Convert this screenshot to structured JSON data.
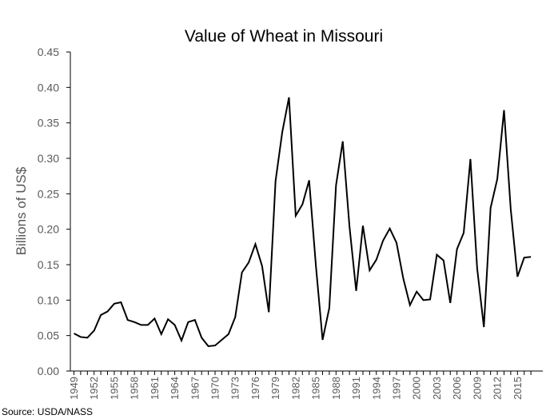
{
  "chart_data": {
    "type": "line",
    "title": "Value of Wheat in Missouri",
    "xlabel": "",
    "ylabel": "Billions of US$",
    "source": "Source: USDA/NASS",
    "ylim": [
      0,
      0.45
    ],
    "yticks": [
      "0.00",
      "0.05",
      "0.10",
      "0.15",
      "0.20",
      "0.25",
      "0.30",
      "0.35",
      "0.40",
      "0.45"
    ],
    "xticks": [
      "1949",
      "1952",
      "1955",
      "1958",
      "1961",
      "1964",
      "1967",
      "1970",
      "1973",
      "1976",
      "1979",
      "1982",
      "1985",
      "1988",
      "1991",
      "1994",
      "1997",
      "2000",
      "2003",
      "2006",
      "2009",
      "2012",
      "2015"
    ],
    "grid": false,
    "legend": "none",
    "line_color": "#000000",
    "x": [
      1949,
      1950,
      1951,
      1952,
      1953,
      1954,
      1955,
      1956,
      1957,
      1958,
      1959,
      1960,
      1961,
      1962,
      1963,
      1964,
      1965,
      1966,
      1967,
      1968,
      1969,
      1970,
      1971,
      1972,
      1973,
      1974,
      1975,
      1976,
      1977,
      1978,
      1979,
      1980,
      1981,
      1982,
      1983,
      1984,
      1985,
      1986,
      1987,
      1988,
      1989,
      1990,
      1991,
      1992,
      1993,
      1994,
      1995,
      1996,
      1997,
      1998,
      1999,
      2000,
      2001,
      2002,
      2003,
      2004,
      2005,
      2006,
      2007,
      2008,
      2009,
      2010,
      2011,
      2012,
      2013,
      2014,
      2015,
      2016,
      2017
    ],
    "values": [
      0.053,
      0.048,
      0.047,
      0.057,
      0.079,
      0.084,
      0.095,
      0.097,
      0.072,
      0.069,
      0.065,
      0.065,
      0.074,
      0.052,
      0.073,
      0.065,
      0.043,
      0.069,
      0.072,
      0.047,
      0.035,
      0.036,
      0.044,
      0.052,
      0.076,
      0.139,
      0.153,
      0.179,
      0.148,
      0.083,
      0.268,
      0.337,
      0.386,
      0.219,
      0.235,
      0.269,
      0.149,
      0.044,
      0.089,
      0.262,
      0.324,
      0.204,
      0.113,
      0.205,
      0.142,
      0.157,
      0.184,
      0.201,
      0.181,
      0.131,
      0.093,
      0.112,
      0.1,
      0.101,
      0.164,
      0.156,
      0.096,
      0.172,
      0.195,
      0.299,
      0.145,
      0.062,
      0.23,
      0.271,
      0.368,
      0.228,
      0.133,
      0.16,
      0.161
    ]
  }
}
